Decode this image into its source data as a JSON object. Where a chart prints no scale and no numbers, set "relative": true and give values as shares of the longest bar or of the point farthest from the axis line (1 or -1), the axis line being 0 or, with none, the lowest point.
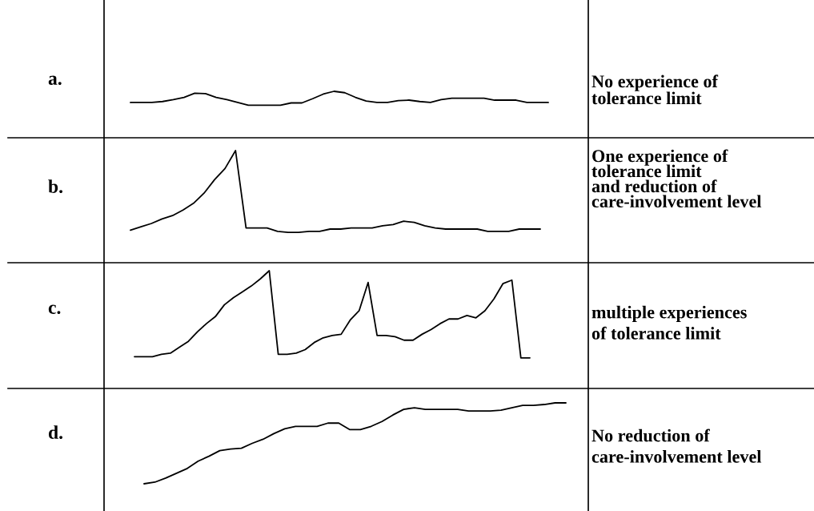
{
  "chart_data": [
    {
      "type": "line",
      "title": "a.",
      "relative": true,
      "annotations": [
        "No experience of\ntolerance limit"
      ],
      "categories": [
        null,
        null,
        null,
        null,
        null,
        null,
        null,
        null,
        null,
        null,
        null,
        null,
        null,
        null,
        null,
        null,
        null,
        null,
        null,
        null,
        null,
        null,
        null,
        null,
        null,
        null,
        null,
        null,
        null,
        null,
        null,
        null,
        null,
        null,
        null,
        null,
        null,
        null,
        null,
        null
      ],
      "series": [
        {
          "color": "#000000",
          "values": [
            0.76,
            0.76,
            0.76,
            0.78,
            0.82,
            0.87,
            0.96,
            0.95,
            0.87,
            0.82,
            0.76,
            0.7,
            0.7,
            0.7,
            0.7,
            0.75,
            0.75,
            0.84,
            0.94,
            1,
            0.97,
            0.87,
            0.79,
            0.76,
            0.76,
            0.8,
            0.81,
            0.78,
            0.76,
            0.82,
            0.85,
            0.85,
            0.85,
            0.85,
            0.81,
            0.81,
            0.81,
            0.76,
            0.76,
            0.76
          ]
        }
      ]
    },
    {
      "type": "line",
      "title": "b.",
      "relative": true,
      "annotations": [
        "One experience of\ntolerance limit\nand reduction of\ncare-involvement level"
      ],
      "categories": [
        null,
        null,
        null,
        null,
        null,
        null,
        null,
        null,
        null,
        null,
        null,
        null,
        null,
        null,
        null,
        null,
        null,
        null,
        null,
        null,
        null,
        null,
        null,
        null,
        null,
        null,
        null,
        null,
        null,
        null,
        null,
        null,
        null,
        null,
        null,
        null,
        null,
        null,
        null,
        null
      ],
      "series": [
        {
          "color": "#000000",
          "values": [
            0.29,
            0.32,
            0.35,
            0.39,
            0.42,
            0.47,
            0.53,
            0.62,
            0.74,
            0.84,
            1,
            0.31,
            0.31,
            0.31,
            0.28,
            0.27,
            0.27,
            0.28,
            0.28,
            0.3,
            0.3,
            0.31,
            0.31,
            0.31,
            0.33,
            0.34,
            0.37,
            0.36,
            0.33,
            0.31,
            0.3,
            0.3,
            0.3,
            0.3,
            0.28,
            0.28,
            0.28,
            0.3,
            0.3,
            0.3
          ]
        }
      ]
    },
    {
      "type": "line",
      "title": "c.",
      "relative": true,
      "annotations": [
        "multiple experiences\nof tolerance limit"
      ],
      "categories": [
        null,
        null,
        null,
        null,
        null,
        null,
        null,
        null,
        null,
        null,
        null,
        null,
        null,
        null,
        null,
        null,
        null,
        null,
        null,
        null,
        null,
        null,
        null,
        null,
        null,
        null,
        null,
        null,
        null,
        null,
        null,
        null,
        null,
        null,
        null,
        null,
        null,
        null,
        null,
        null,
        null,
        null,
        null,
        null,
        null
      ],
      "series": [
        {
          "color": "#000000",
          "values": [
            0.27,
            0.27,
            0.27,
            0.29,
            0.3,
            0.35,
            0.4,
            0.48,
            0.55,
            0.61,
            0.71,
            0.77,
            0.82,
            0.87,
            0.93,
            1,
            0.29,
            0.29,
            0.3,
            0.33,
            0.39,
            0.43,
            0.45,
            0.46,
            0.58,
            0.66,
            0.9,
            0.45,
            0.45,
            0.44,
            0.41,
            0.41,
            0.46,
            0.5,
            0.55,
            0.59,
            0.59,
            0.62,
            0.6,
            0.66,
            0.76,
            0.89,
            0.92,
            0.26,
            0.26
          ]
        }
      ]
    },
    {
      "type": "line",
      "title": "d.",
      "relative": true,
      "annotations": [
        "No reduction of\ncare-involvement level"
      ],
      "categories": [
        null,
        null,
        null,
        null,
        null,
        null,
        null,
        null,
        null,
        null,
        null,
        null,
        null,
        null,
        null,
        null,
        null,
        null,
        null,
        null,
        null,
        null,
        null,
        null,
        null,
        null,
        null,
        null,
        null,
        null,
        null,
        null,
        null,
        null,
        null,
        null,
        null,
        null,
        null,
        null
      ],
      "series": [
        {
          "color": "#000000",
          "values": [
            0,
            0.02,
            0.07,
            0.13,
            0.19,
            0.28,
            0.34,
            0.41,
            0.43,
            0.44,
            0.5,
            0.55,
            0.62,
            0.68,
            0.71,
            0.71,
            0.71,
            0.75,
            0.75,
            0.67,
            0.67,
            0.71,
            0.77,
            0.85,
            0.92,
            0.94,
            0.92,
            0.92,
            0.92,
            0.92,
            0.9,
            0.9,
            0.9,
            0.91,
            0.94,
            0.97,
            0.97,
            0.98,
            1,
            1
          ]
        }
      ]
    }
  ]
}
